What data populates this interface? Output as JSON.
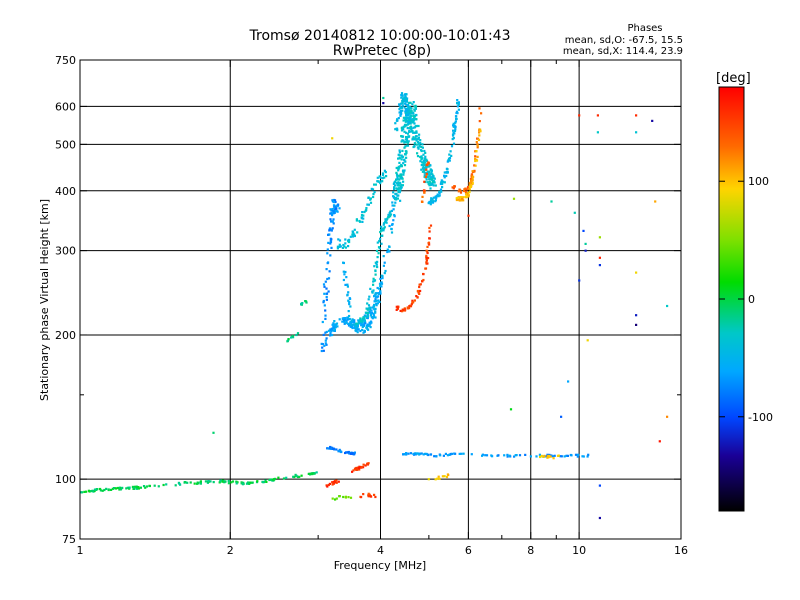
{
  "chart_data": {
    "type": "scatter",
    "title": "Tromsø 20140812 10:00:00-10:01:43",
    "subtitle": "RwPretec (8p)",
    "xlabel": "Frequency [MHz]",
    "ylabel": "Stationary phase Virtual Height [km]",
    "x_scale": "log",
    "y_scale": "log",
    "xlim": [
      1,
      16
    ],
    "ylim": [
      75,
      750
    ],
    "x_ticks": [
      1,
      2,
      4,
      6,
      8,
      10,
      16
    ],
    "x_tick_labels": [
      "1",
      "2",
      "4",
      "6",
      "8",
      "10",
      "16"
    ],
    "x_minor_ticks": [
      3,
      5,
      7,
      9
    ],
    "y_ticks": [
      75,
      100,
      200,
      300,
      400,
      500,
      600,
      750
    ],
    "y_tick_labels": [
      "75",
      "100",
      "200",
      "300",
      "400",
      "500",
      "600",
      "750"
    ],
    "y_minor_ticks": [
      150
    ],
    "grid": true,
    "phase_stats": {
      "heading": "Phases",
      "line_o": "mean, sd,O: -67.5, 15.5",
      "line_x": "mean, sd,X: 114.4, 23.9"
    },
    "colorbar": {
      "label": "[deg]",
      "range": [
        -180,
        180
      ],
      "ticks": [
        100,
        0,
        -100
      ],
      "tick_labels": [
        "100",
        "0",
        "-100"
      ]
    },
    "traces": [
      {
        "phase": -5,
        "spread": 0.004,
        "density": 160,
        "x": [
          1.0,
          1.1,
          1.3,
          1.6,
          1.9,
          2.2,
          2.6,
          3.0
        ],
        "y": [
          94,
          95,
          96,
          98,
          99,
          98,
          101,
          103
        ]
      },
      {
        "phase": -90,
        "spread": 0.012,
        "density": 100,
        "x": [
          3.08,
          3.12,
          3.18,
          3.22,
          3.28
        ],
        "y": [
          185,
          260,
          330,
          380,
          365
        ]
      },
      {
        "phase": -75,
        "spread": 0.012,
        "density": 140,
        "x": [
          3.12,
          3.25,
          3.4,
          3.55,
          3.7,
          3.85,
          4.0
        ],
        "y": [
          200,
          210,
          215,
          210,
          212,
          225,
          255
        ]
      },
      {
        "phase": -70,
        "spread": 0.01,
        "density": 120,
        "x": [
          3.3,
          3.4,
          3.5,
          3.6,
          3.7,
          3.8,
          3.9,
          4.0,
          4.1,
          4.2,
          4.3
        ],
        "y": [
          330,
          260,
          215,
          205,
          205,
          210,
          225,
          250,
          290,
          340,
          400
        ]
      },
      {
        "phase": -40,
        "spread": 0.008,
        "density": 90,
        "x": [
          3.6,
          3.75,
          3.85,
          3.95,
          4.05,
          4.2
        ],
        "y": [
          210,
          220,
          250,
          300,
          340,
          360
        ]
      },
      {
        "phase": -40,
        "spread": 0.02,
        "density": 380,
        "x": [
          4.3,
          4.4,
          4.5,
          4.6,
          4.7,
          4.9,
          5.1
        ],
        "y": [
          380,
          460,
          540,
          600,
          520,
          450,
          410
        ]
      },
      {
        "phase": -55,
        "spread": 0.01,
        "density": 80,
        "x": [
          4.3,
          4.4,
          4.45,
          4.5,
          4.55
        ],
        "y": [
          540,
          600,
          640,
          610,
          560
        ]
      },
      {
        "phase": -60,
        "spread": 0.008,
        "density": 90,
        "x": [
          5.0,
          5.2,
          5.4,
          5.55,
          5.65,
          5.75
        ],
        "y": [
          375,
          390,
          430,
          490,
          560,
          630
        ]
      },
      {
        "phase": -45,
        "spread": 0.01,
        "density": 70,
        "x": [
          3.3,
          3.5,
          3.7,
          3.9,
          4.1
        ],
        "y": [
          300,
          320,
          360,
          410,
          440
        ]
      },
      {
        "phase": 150,
        "spread": 0.006,
        "density": 70,
        "x": [
          4.3,
          4.45,
          4.6,
          4.75,
          4.9,
          4.98,
          5.05
        ],
        "y": [
          228,
          225,
          230,
          245,
          270,
          300,
          350
        ]
      },
      {
        "phase": 135,
        "spread": 0.006,
        "density": 50,
        "x": [
          5.6,
          5.75,
          5.9,
          6.05,
          6.15,
          6.25,
          6.35
        ],
        "y": [
          410,
          400,
          400,
          410,
          440,
          500,
          600
        ]
      },
      {
        "phase": 105,
        "spread": 0.006,
        "density": 60,
        "x": [
          5.7,
          5.85,
          6.0,
          6.1,
          6.2,
          6.35
        ],
        "y": [
          385,
          385,
          395,
          420,
          460,
          540
        ]
      },
      {
        "phase": 140,
        "spread": 0.005,
        "density": 20,
        "x": [
          4.85,
          4.9,
          4.95,
          5.0
        ],
        "y": [
          380,
          410,
          440,
          470
        ]
      },
      {
        "phase": -100,
        "spread": 0.004,
        "density": 40,
        "x": [
          3.1,
          3.25,
          3.4,
          3.55
        ],
        "y": [
          117,
          115,
          114,
          113
        ]
      },
      {
        "phase": -85,
        "spread": 0.003,
        "density": 90,
        "x": [
          4.4,
          4.8,
          5.2,
          5.6,
          6.5,
          7.5,
          8.5,
          9.5,
          10.5
        ],
        "y": [
          113,
          113,
          112,
          113,
          112,
          112,
          112,
          112,
          112
        ]
      },
      {
        "phase": 155,
        "spread": 0.005,
        "density": 25,
        "x": [
          3.5,
          3.65,
          3.8
        ],
        "y": [
          104,
          106,
          108
        ]
      },
      {
        "phase": 160,
        "spread": 0.005,
        "density": 15,
        "x": [
          3.1,
          3.2,
          3.3
        ],
        "y": [
          97,
          98,
          99
        ]
      },
      {
        "phase": 150,
        "spread": 0.005,
        "density": 12,
        "x": [
          3.6,
          3.75,
          3.9
        ],
        "y": [
          92,
          93,
          92
        ]
      },
      {
        "phase": 40,
        "spread": 0.004,
        "density": 10,
        "x": [
          3.2,
          3.35,
          3.5
        ],
        "y": [
          91,
          92,
          91
        ]
      },
      {
        "phase": 100,
        "spread": 0.004,
        "density": 12,
        "x": [
          8.3,
          8.9,
          9.3
        ],
        "y": [
          112,
          111,
          112
        ]
      },
      {
        "phase": -10,
        "spread": 0.004,
        "density": 12,
        "x": [
          2.6,
          2.7,
          2.8
        ],
        "y": [
          195,
          200,
          205
        ]
      },
      {
        "phase": -15,
        "spread": 0.004,
        "density": 8,
        "x": [
          2.75,
          2.85
        ],
        "y": [
          232,
          235
        ]
      },
      {
        "phase": 100,
        "spread": 0.004,
        "density": 10,
        "x": [
          5.0,
          5.3,
          5.5
        ],
        "y": [
          100,
          101,
          102
        ]
      }
    ],
    "scatter_points": [
      {
        "x": 1.85,
        "y": 125,
        "phase": -10
      },
      {
        "x": 3.2,
        "y": 515,
        "phase": 90
      },
      {
        "x": 4.05,
        "y": 610,
        "phase": -150
      },
      {
        "x": 4.05,
        "y": 625,
        "phase": -20
      },
      {
        "x": 6.0,
        "y": 355,
        "phase": 155
      },
      {
        "x": 7.3,
        "y": 140,
        "phase": 10
      },
      {
        "x": 7.4,
        "y": 385,
        "phase": 60
      },
      {
        "x": 8.8,
        "y": 380,
        "phase": -20
      },
      {
        "x": 9.2,
        "y": 135,
        "phase": -110
      },
      {
        "x": 9.5,
        "y": 160,
        "phase": -80
      },
      {
        "x": 9.8,
        "y": 360,
        "phase": -25
      },
      {
        "x": 10.0,
        "y": 575,
        "phase": 160
      },
      {
        "x": 10.0,
        "y": 260,
        "phase": -130
      },
      {
        "x": 10.2,
        "y": 330,
        "phase": -120
      },
      {
        "x": 10.3,
        "y": 300,
        "phase": -140
      },
      {
        "x": 10.3,
        "y": 310,
        "phase": -20
      },
      {
        "x": 10.4,
        "y": 195,
        "phase": 90
      },
      {
        "x": 10.9,
        "y": 575,
        "phase": 160
      },
      {
        "x": 10.9,
        "y": 530,
        "phase": -30
      },
      {
        "x": 11.0,
        "y": 320,
        "phase": 60
      },
      {
        "x": 11.0,
        "y": 290,
        "phase": 165
      },
      {
        "x": 11.0,
        "y": 280,
        "phase": -130
      },
      {
        "x": 11.0,
        "y": 97,
        "phase": -120
      },
      {
        "x": 11.0,
        "y": 83,
        "phase": -150
      },
      {
        "x": 13.0,
        "y": 575,
        "phase": 160
      },
      {
        "x": 13.0,
        "y": 530,
        "phase": -40
      },
      {
        "x": 13.0,
        "y": 270,
        "phase": 90
      },
      {
        "x": 13.0,
        "y": 220,
        "phase": -140
      },
      {
        "x": 13.0,
        "y": 210,
        "phase": -160
      },
      {
        "x": 14.0,
        "y": 560,
        "phase": -150
      },
      {
        "x": 14.2,
        "y": 380,
        "phase": 110
      },
      {
        "x": 15.0,
        "y": 230,
        "phase": -30
      },
      {
        "x": 15.0,
        "y": 135,
        "phase": 120
      },
      {
        "x": 14.5,
        "y": 120,
        "phase": 170
      }
    ]
  }
}
